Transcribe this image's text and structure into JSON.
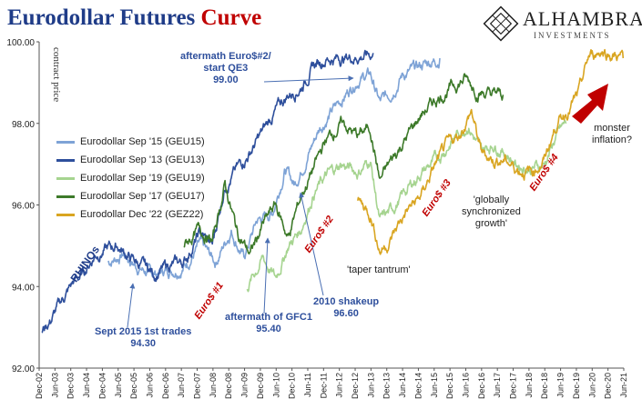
{
  "title": {
    "main": "Eurodollar Futures",
    "accent": "Curve"
  },
  "logo": {
    "name": "ALHAMBRA",
    "sub": "INVESTMENTS"
  },
  "chart_data": {
    "type": "line",
    "title": "Eurodollar Futures Curve",
    "ylabel": "contract price",
    "xlabel": "",
    "ylim": [
      92.0,
      100.0
    ],
    "yticks": [
      "92.00",
      "94.00",
      "96.00",
      "98.00",
      "100.00"
    ],
    "xticks": [
      "Dec-02",
      "Jun-03",
      "Dec-03",
      "Jun-04",
      "Dec-04",
      "Jun-05",
      "Dec-05",
      "Jun-06",
      "Dec-06",
      "Jun-07",
      "Dec-07",
      "Jun-08",
      "Dec-08",
      "Jun-09",
      "Dec-09",
      "Jun-10",
      "Dec-10",
      "Jun-11",
      "Dec-11",
      "Jun-12",
      "Dec-12",
      "Jun-13",
      "Dec-13",
      "Jun-14",
      "Dec-14",
      "Jun-15",
      "Dec-15",
      "Jun-16",
      "Dec-16",
      "Jun-17",
      "Dec-17",
      "Jun-18",
      "Dec-18",
      "Jun-19",
      "Dec-19",
      "Jun-20",
      "Dec-20",
      "Jun-21"
    ],
    "grid": false,
    "legend_position": "left",
    "series": [
      {
        "name": "Eurodollar Sep '15 (GEU15)",
        "color": "#7ea3d6",
        "points": [
          [
            2005.1,
            94.6
          ],
          [
            2005.6,
            94.8
          ],
          [
            2006.0,
            94.5
          ],
          [
            2006.5,
            94.3
          ],
          [
            2007.0,
            94.4
          ],
          [
            2007.5,
            94.5
          ],
          [
            2008.0,
            95.0
          ],
          [
            2008.5,
            94.6
          ],
          [
            2009.0,
            95.4
          ],
          [
            2009.4,
            94.7
          ],
          [
            2009.8,
            95.6
          ],
          [
            2010.3,
            95.8
          ],
          [
            2010.7,
            96.9
          ],
          [
            2011.0,
            96.5
          ],
          [
            2011.4,
            97.2
          ],
          [
            2011.8,
            97.9
          ],
          [
            2012.2,
            98.3
          ],
          [
            2012.6,
            98.7
          ],
          [
            2013.0,
            99.1
          ],
          [
            2013.4,
            99.2
          ],
          [
            2013.7,
            98.5
          ],
          [
            2014.0,
            98.7
          ],
          [
            2014.4,
            99.2
          ],
          [
            2014.8,
            99.3
          ],
          [
            2015.2,
            99.5
          ],
          [
            2015.6,
            99.6
          ]
        ]
      },
      {
        "name": "Eurodollar Sep '13 (GEU13)",
        "color": "#2e4f9c",
        "points": [
          [
            2003.0,
            92.9
          ],
          [
            2003.3,
            93.2
          ],
          [
            2003.6,
            93.6
          ],
          [
            2004.0,
            94.1
          ],
          [
            2004.3,
            94.3
          ],
          [
            2004.7,
            94.8
          ],
          [
            2005.0,
            94.9
          ],
          [
            2005.4,
            95.0
          ],
          [
            2005.8,
            94.7
          ],
          [
            2006.2,
            94.5
          ],
          [
            2006.6,
            94.3
          ],
          [
            2007.0,
            94.5
          ],
          [
            2007.5,
            94.6
          ],
          [
            2008.0,
            95.3
          ],
          [
            2008.4,
            95.0
          ],
          [
            2008.8,
            96.5
          ],
          [
            2009.2,
            96.9
          ],
          [
            2009.6,
            97.3
          ],
          [
            2010.0,
            97.8
          ],
          [
            2010.4,
            98.3
          ],
          [
            2010.8,
            98.7
          ],
          [
            2011.2,
            98.9
          ],
          [
            2011.6,
            99.4
          ],
          [
            2012.0,
            99.6
          ],
          [
            2012.5,
            99.6
          ],
          [
            2013.0,
            99.65
          ],
          [
            2013.5,
            99.7
          ]
        ]
      },
      {
        "name": "Eurodollar Sep '19 (GEU19)",
        "color": "#a6d490",
        "points": [
          [
            2009.5,
            94.0
          ],
          [
            2010.0,
            94.7
          ],
          [
            2010.4,
            94.2
          ],
          [
            2010.8,
            95.0
          ],
          [
            2011.2,
            95.4
          ],
          [
            2011.6,
            96.3
          ],
          [
            2012.0,
            96.7
          ],
          [
            2012.5,
            97.0
          ],
          [
            2013.0,
            96.8
          ],
          [
            2013.4,
            97.1
          ],
          [
            2013.7,
            95.6
          ],
          [
            2014.0,
            95.8
          ],
          [
            2014.5,
            96.3
          ],
          [
            2015.0,
            96.8
          ],
          [
            2015.5,
            97.1
          ],
          [
            2016.0,
            97.6
          ],
          [
            2016.5,
            98.0
          ],
          [
            2016.9,
            97.3
          ],
          [
            2017.3,
            97.5
          ],
          [
            2017.7,
            97.3
          ],
          [
            2018.0,
            97.0
          ],
          [
            2018.5,
            96.9
          ],
          [
            2018.9,
            97.0
          ],
          [
            2019.3,
            97.7
          ],
          [
            2019.6,
            98.0
          ]
        ]
      },
      {
        "name": "Eurodollar Sep '17 (GEU17)",
        "color": "#3d7a2a",
        "points": [
          [
            2007.5,
            95.0
          ],
          [
            2008.0,
            95.4
          ],
          [
            2008.4,
            95.1
          ],
          [
            2008.8,
            96.5
          ],
          [
            2009.2,
            95.3
          ],
          [
            2009.6,
            94.8
          ],
          [
            2010.0,
            95.5
          ],
          [
            2010.4,
            96.0
          ],
          [
            2010.8,
            95.2
          ],
          [
            2011.2,
            96.2
          ],
          [
            2011.6,
            96.9
          ],
          [
            2012.0,
            97.6
          ],
          [
            2012.5,
            98.0
          ],
          [
            2013.0,
            97.7
          ],
          [
            2013.4,
            97.9
          ],
          [
            2013.7,
            96.6
          ],
          [
            2014.0,
            97.0
          ],
          [
            2014.5,
            97.6
          ],
          [
            2015.0,
            98.2
          ],
          [
            2015.5,
            98.6
          ],
          [
            2016.0,
            98.9
          ],
          [
            2016.4,
            99.1
          ],
          [
            2016.8,
            98.8
          ],
          [
            2017.2,
            98.7
          ],
          [
            2017.6,
            98.7
          ]
        ]
      },
      {
        "name": "Eurodollar Dec '22 (GEZ22)",
        "color": "#d9a521",
        "points": [
          [
            2013.0,
            96.1
          ],
          [
            2013.4,
            95.8
          ],
          [
            2013.7,
            94.9
          ],
          [
            2014.0,
            95.1
          ],
          [
            2014.5,
            95.8
          ],
          [
            2015.0,
            96.2
          ],
          [
            2015.4,
            96.9
          ],
          [
            2015.8,
            97.4
          ],
          [
            2016.2,
            97.7
          ],
          [
            2016.6,
            98.3
          ],
          [
            2016.9,
            97.3
          ],
          [
            2017.3,
            97.1
          ],
          [
            2017.7,
            97.1
          ],
          [
            2018.0,
            96.9
          ],
          [
            2018.5,
            96.8
          ],
          [
            2018.9,
            97.1
          ],
          [
            2019.3,
            98.0
          ],
          [
            2019.7,
            98.4
          ],
          [
            2020.0,
            98.7
          ],
          [
            2020.3,
            99.6
          ],
          [
            2020.7,
            99.8
          ],
          [
            2021.0,
            99.7
          ],
          [
            2021.4,
            99.6
          ]
        ]
      }
    ],
    "annotations": [
      {
        "text": "aftermath Euro$#2/ start QE3",
        "value": "99.00"
      },
      {
        "text": "RHINOs"
      },
      {
        "text": "Sept 2015 1st trades",
        "value": "94.30"
      },
      {
        "text": "Euro$ #1"
      },
      {
        "text": "aftermath of GFC1",
        "value": "95.40"
      },
      {
        "text": "Euro$ #2"
      },
      {
        "text": "2010 shakeup",
        "value": "96.60"
      },
      {
        "text": "'taper tantrum'"
      },
      {
        "text": "Euro$ #3"
      },
      {
        "text": "'globally synchronized growth'"
      },
      {
        "text": "Euro$ #4"
      },
      {
        "text": "monster inflation?"
      }
    ]
  },
  "annotations": {
    "qe3_l1": "aftermath Euro$#2/",
    "qe3_l2": "start QE3",
    "qe3_val": "99.00",
    "rhinos": "RHINOs",
    "sept_l1": "Sept 2015 1st trades",
    "sept_val": "94.30",
    "euro1": "Euro$ #1",
    "gfc_l1": "aftermath of GFC1",
    "gfc_val": "95.40",
    "euro2": "Euro$ #2",
    "shake_l1": "2010 shakeup",
    "shake_val": "96.60",
    "taper": "'taper tantrum'",
    "euro3": "Euro$ #3",
    "sync_l1": "'globally",
    "sync_l2": "synchronized",
    "sync_l3": "growth'",
    "euro4": "Euro$ #4",
    "monster_l1": "monster",
    "monster_l2": "inflation?"
  },
  "colors": {
    "title": "#1f3c88",
    "accent": "#c00000",
    "arrow": "#c00000"
  }
}
